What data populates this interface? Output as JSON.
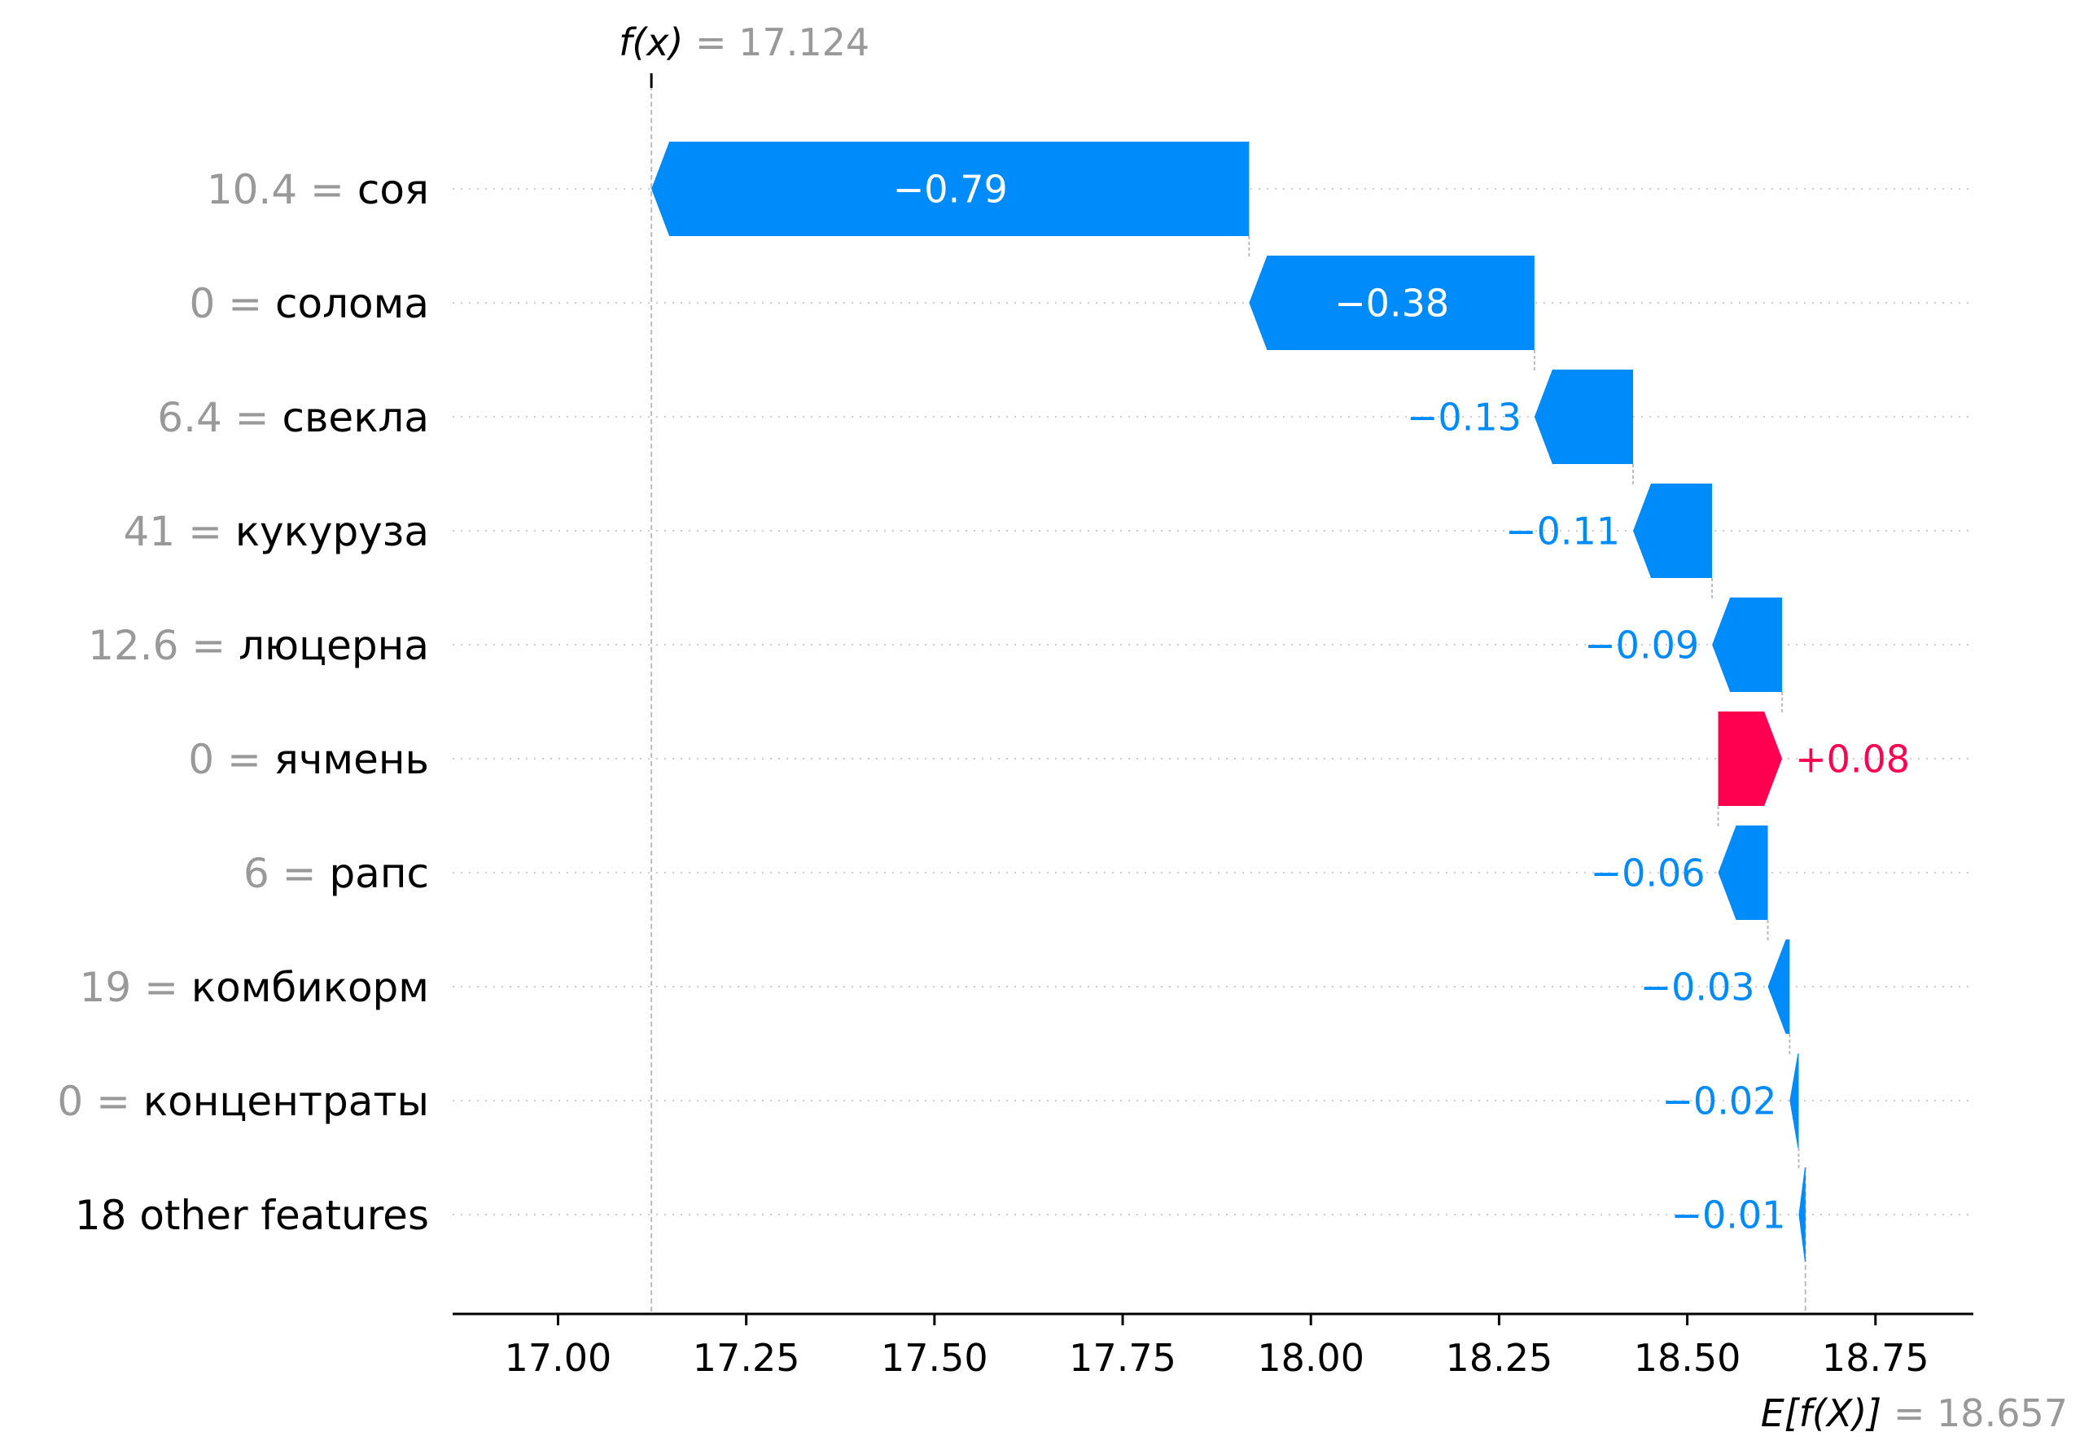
{
  "chart_data": {
    "type": "waterfall",
    "fx_label": "f(x)",
    "fx_value": "17.124",
    "ex_label": "E[f(X)]",
    "ex_value": "18.657",
    "base_value": 18.657,
    "final_value": 17.124,
    "xlim": [
      16.86,
      18.88
    ],
    "x_ticks": [
      "17.00",
      "17.25",
      "17.50",
      "17.75",
      "18.00",
      "18.25",
      "18.50",
      "18.75"
    ],
    "features": [
      {
        "value": "10.4",
        "name": "соя",
        "contribution": -0.79,
        "label": "−0.79",
        "start": 17.918,
        "end": 17.124
      },
      {
        "value": "0",
        "name": "солома",
        "contribution": -0.38,
        "label": "−0.38",
        "start": 18.297,
        "end": 17.918
      },
      {
        "value": "6.4",
        "name": "свекла",
        "contribution": -0.13,
        "label": "−0.13",
        "start": 18.428,
        "end": 18.297
      },
      {
        "value": "41",
        "name": "кукуруза",
        "contribution": -0.11,
        "label": "−0.11",
        "start": 18.533,
        "end": 18.428
      },
      {
        "value": "12.6",
        "name": "люцерна",
        "contribution": -0.09,
        "label": "−0.09",
        "start": 18.626,
        "end": 18.533
      },
      {
        "value": "0",
        "name": "ячмень",
        "contribution": 0.08,
        "label": "+0.08",
        "start": 18.541,
        "end": 18.626
      },
      {
        "value": "6",
        "name": "рапс",
        "contribution": -0.06,
        "label": "−0.06",
        "start": 18.607,
        "end": 18.541
      },
      {
        "value": "19",
        "name": "комбикорм",
        "contribution": -0.03,
        "label": "−0.03",
        "start": 18.636,
        "end": 18.607
      },
      {
        "value": "0",
        "name": "концентраты",
        "contribution": -0.02,
        "label": "−0.02",
        "start": 18.648,
        "end": 18.636
      },
      {
        "value": "",
        "name": "18 other features",
        "contribution": -0.01,
        "label": "−0.01",
        "start": 18.657,
        "end": 18.648
      }
    ],
    "colors": {
      "negative": "#008bfb",
      "positive": "#ff0051",
      "muted": "#999999",
      "text": "#000000"
    }
  }
}
